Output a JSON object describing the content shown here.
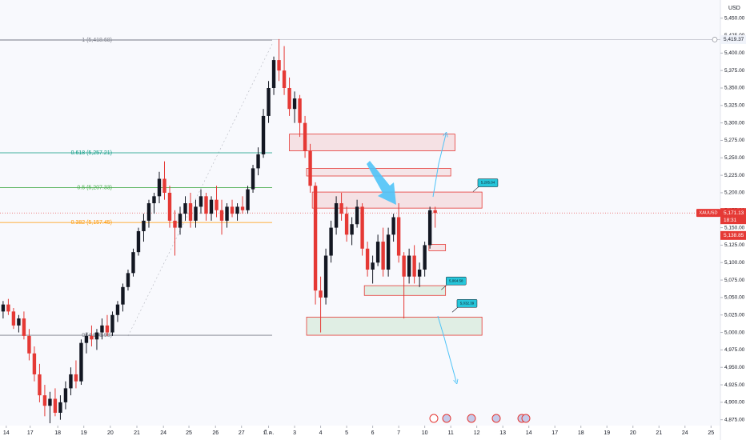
{
  "chart_data": {
    "type": "candlestick",
    "symbol": "XAUUSD",
    "currency": "USD",
    "x": [
      0,
      1,
      2,
      3,
      4,
      5,
      6,
      7,
      8,
      9,
      10,
      11,
      12,
      13,
      14,
      15,
      16,
      17,
      18,
      19,
      20,
      21,
      22,
      23,
      24,
      25,
      26,
      27,
      28,
      29,
      30,
      31,
      32,
      33,
      34,
      35,
      36,
      37,
      38,
      39,
      40,
      41,
      42,
      43,
      44,
      45,
      46,
      47,
      48,
      49,
      50,
      51,
      52,
      53,
      54,
      55,
      56,
      57,
      58,
      59,
      60,
      61,
      62,
      63,
      64,
      65,
      66,
      67,
      68,
      69,
      70,
      71,
      72,
      73,
      74,
      75,
      76,
      77,
      78,
      79,
      80,
      81,
      82,
      83
    ],
    "open": [
      5030,
      5040,
      5030,
      5010,
      5020,
      4995,
      4970,
      4940,
      4910,
      4895,
      4905,
      4885,
      4900,
      4920,
      4940,
      4930,
      4985,
      4995,
      4990,
      5000,
      5010,
      5000,
      5025,
      5040,
      5065,
      5085,
      5115,
      5145,
      5160,
      5185,
      5195,
      5220,
      5200,
      5160,
      5150,
      5170,
      5185,
      5160,
      5180,
      5195,
      5170,
      5190,
      5175,
      5160,
      5180,
      5170,
      5180,
      5175,
      5205,
      5235,
      5255,
      5310,
      5350,
      5390,
      5375,
      5350,
      5320,
      5335,
      5300,
      5260,
      5210,
      5060,
      5050,
      5110,
      5150,
      5185,
      5170,
      5140,
      5155,
      5180,
      5120,
      5090,
      5100,
      5130,
      5090,
      5140,
      5165,
      5110,
      5080,
      5110,
      5080,
      5090,
      5125,
      5175
    ],
    "high": [
      5045,
      5048,
      5035,
      5025,
      5030,
      5005,
      4980,
      4955,
      4925,
      4915,
      4920,
      4910,
      4930,
      4950,
      4960,
      4990,
      5000,
      5010,
      5005,
      5020,
      5025,
      5030,
      5045,
      5070,
      5090,
      5120,
      5150,
      5170,
      5190,
      5200,
      5230,
      5245,
      5210,
      5175,
      5180,
      5195,
      5200,
      5190,
      5205,
      5200,
      5195,
      5210,
      5190,
      5185,
      5190,
      5185,
      5195,
      5210,
      5240,
      5265,
      5320,
      5360,
      5395,
      5420,
      5410,
      5365,
      5345,
      5340,
      5310,
      5270,
      5215,
      5080,
      5120,
      5160,
      5195,
      5200,
      5180,
      5165,
      5190,
      5185,
      5130,
      5110,
      5140,
      5150,
      5150,
      5170,
      5185,
      5115,
      5120,
      5125,
      5100,
      5130,
      5180,
      5180
    ],
    "low": [
      5020,
      5025,
      5005,
      5000,
      4990,
      4960,
      4930,
      4900,
      4880,
      4870,
      4880,
      4875,
      4890,
      4910,
      4920,
      4925,
      4970,
      4980,
      4975,
      4990,
      4995,
      4995,
      5015,
      5030,
      5060,
      5080,
      5110,
      5130,
      5150,
      5170,
      5185,
      5190,
      5150,
      5110,
      5140,
      5160,
      5150,
      5150,
      5170,
      5160,
      5160,
      5165,
      5140,
      5150,
      5165,
      5160,
      5170,
      5170,
      5200,
      5225,
      5250,
      5300,
      5340,
      5360,
      5340,
      5310,
      5300,
      5280,
      5250,
      5200,
      5040,
      5000,
      5040,
      5100,
      5140,
      5160,
      5130,
      5125,
      5150,
      5110,
      5080,
      5070,
      5095,
      5080,
      5080,
      5130,
      5100,
      5020,
      5070,
      5070,
      5065,
      5080,
      5120,
      5150
    ],
    "close": [
      5040,
      5030,
      5010,
      5020,
      4995,
      4970,
      4940,
      4910,
      4895,
      4905,
      4885,
      4900,
      4920,
      4940,
      4930,
      4985,
      4995,
      4990,
      5000,
      5010,
      5000,
      5025,
      5040,
      5065,
      5085,
      5115,
      5145,
      5160,
      5185,
      5195,
      5220,
      5200,
      5160,
      5150,
      5170,
      5185,
      5160,
      5180,
      5195,
      5170,
      5190,
      5175,
      5160,
      5180,
      5170,
      5180,
      5175,
      5205,
      5235,
      5255,
      5310,
      5350,
      5390,
      5375,
      5350,
      5320,
      5335,
      5300,
      5260,
      5210,
      5060,
      5050,
      5110,
      5150,
      5185,
      5170,
      5140,
      5155,
      5180,
      5120,
      5090,
      5100,
      5130,
      5090,
      5140,
      5165,
      5110,
      5080,
      5110,
      5080,
      5090,
      5125,
      5175,
      5171
    ],
    "up_color": "#131722",
    "down_color": "#e53935",
    "xlim": [
      -0.6,
      137.8
    ],
    "ylim": [
      4846,
      5476
    ],
    "xticks": [
      {
        "value": 0.6,
        "label": "14"
      },
      {
        "value": 5.2,
        "label": "17"
      },
      {
        "value": 10.5,
        "label": "18"
      },
      {
        "value": 15.5,
        "label": "19"
      },
      {
        "value": 20.6,
        "label": "20"
      },
      {
        "value": 25.7,
        "label": "21"
      },
      {
        "value": 30.8,
        "label": "24"
      },
      {
        "value": 35.7,
        "label": "25"
      },
      {
        "value": 40.8,
        "label": "26"
      },
      {
        "value": 45.8,
        "label": "27"
      },
      {
        "value": 51,
        "label": "มี.ค."
      },
      {
        "value": 56,
        "label": "3"
      },
      {
        "value": 61,
        "label": "4"
      },
      {
        "value": 66,
        "label": "5"
      },
      {
        "value": 71,
        "label": "6"
      },
      {
        "value": 76,
        "label": "7"
      },
      {
        "value": 81,
        "label": "10"
      },
      {
        "value": 86,
        "label": "11"
      },
      {
        "value": 91,
        "label": "12"
      },
      {
        "value": 96,
        "label": "13"
      },
      {
        "value": 101,
        "label": "14"
      },
      {
        "value": 106,
        "label": "17"
      },
      {
        "value": 111,
        "label": "18"
      },
      {
        "value": 116,
        "label": "19"
      },
      {
        "value": 121,
        "label": "20"
      },
      {
        "value": 126,
        "label": "21"
      },
      {
        "value": 131,
        "label": "24"
      },
      {
        "value": 136,
        "label": "25"
      }
    ],
    "yticks": [
      {
        "value": 4875,
        "label": "4,875.00"
      },
      {
        "value": 4900,
        "label": "4,900.00"
      },
      {
        "value": 4925,
        "label": "4,925.00"
      },
      {
        "value": 4950,
        "label": "4,950.00"
      },
      {
        "value": 4975,
        "label": "4,975.00"
      },
      {
        "value": 5000,
        "label": "5,000.00"
      },
      {
        "value": 5025,
        "label": "5,025.00"
      },
      {
        "value": 5050,
        "label": "5,050.00"
      },
      {
        "value": 5075,
        "label": "5,075.00"
      },
      {
        "value": 5100,
        "label": "5,100.00"
      },
      {
        "value": 5125,
        "label": "5,125.00"
      },
      {
        "value": 5150,
        "label": "5,150.00"
      },
      {
        "value": 5175,
        "label": "5,175.00"
      },
      {
        "value": 5200,
        "label": "5,200.00"
      },
      {
        "value": 5225,
        "label": "5,225.00"
      },
      {
        "value": 5250,
        "label": "5,250.00"
      },
      {
        "value": 5275,
        "label": "5,275.00"
      },
      {
        "value": 5300,
        "label": "5,300.00"
      },
      {
        "value": 5325,
        "label": "5,325.00"
      },
      {
        "value": 5350,
        "label": "5,350.00"
      },
      {
        "value": 5375,
        "label": "5,375.00"
      },
      {
        "value": 5400,
        "label": "5,400.00"
      },
      {
        "value": 5425,
        "label": "5,425.00"
      },
      {
        "value": 5450,
        "label": "5,450.00"
      }
    ],
    "fib": [
      {
        "value": 5418.68,
        "label": "1 (5,418.68)",
        "color": "#787b86"
      },
      {
        "value": 5257.21,
        "label": "0.618 (5,257.21)",
        "color": "#089981"
      },
      {
        "value": 5207.33,
        "label": "0.5 (5,207.33)",
        "color": "#4caf50"
      },
      {
        "value": 5157.45,
        "label": "0.382 (5,157.45)",
        "color": "#ff9800"
      },
      {
        "value": 4995.98,
        "label": "0 (4,995.98)",
        "color": "#787b86"
      }
    ],
    "zones": [
      {
        "x": [
          55,
          86.8
        ],
        "y": [
          5260,
          5284
        ],
        "fill": "rgba(229,57,53,0.12)",
        "stroke": "#e53935"
      },
      {
        "x": [
          58.3,
          86
        ],
        "y": [
          5224,
          5235
        ],
        "fill": "rgba(229,57,53,0.10)",
        "stroke": "#e53935"
      },
      {
        "x": [
          59.4,
          92
        ],
        "y": [
          5178,
          5201
        ],
        "fill": "rgba(229,57,53,0.12)",
        "stroke": "#e53935"
      },
      {
        "x": [
          81.8,
          85
        ],
        "y": [
          5117,
          5126
        ],
        "fill": "rgba(229,57,53,0.10)",
        "stroke": "#e53935"
      },
      {
        "x": [
          69.4,
          85
        ],
        "y": [
          5053,
          5067
        ],
        "fill": "rgba(76,175,80,0.14)",
        "stroke": "#e53935"
      },
      {
        "x": [
          58.3,
          92
        ],
        "y": [
          4996,
          5022
        ],
        "fill": "rgba(76,175,80,0.14)",
        "stroke": "#e53935"
      }
    ],
    "callouts": [
      {
        "value": 5205.04,
        "label": "5,205.04",
        "x": 91.2
      },
      {
        "value": 5064.58,
        "label": "5,064.58",
        "x": 85.1
      },
      {
        "value": 5032.39,
        "label": "5,032.39",
        "x": 87.2
      }
    ],
    "price_tags": [
      {
        "value": 5419.37,
        "label": "5,419.37",
        "color": "#f0f3fa",
        "text_color": "#131722"
      },
      {
        "value": 5171.13,
        "label": "5,171.13",
        "time": "18:31",
        "color": "#e53935",
        "text_color": "#ffffff"
      },
      {
        "value": 5138.85,
        "label": "5,138.85",
        "color": "#e53935",
        "text_color": "#ffffff"
      }
    ]
  }
}
